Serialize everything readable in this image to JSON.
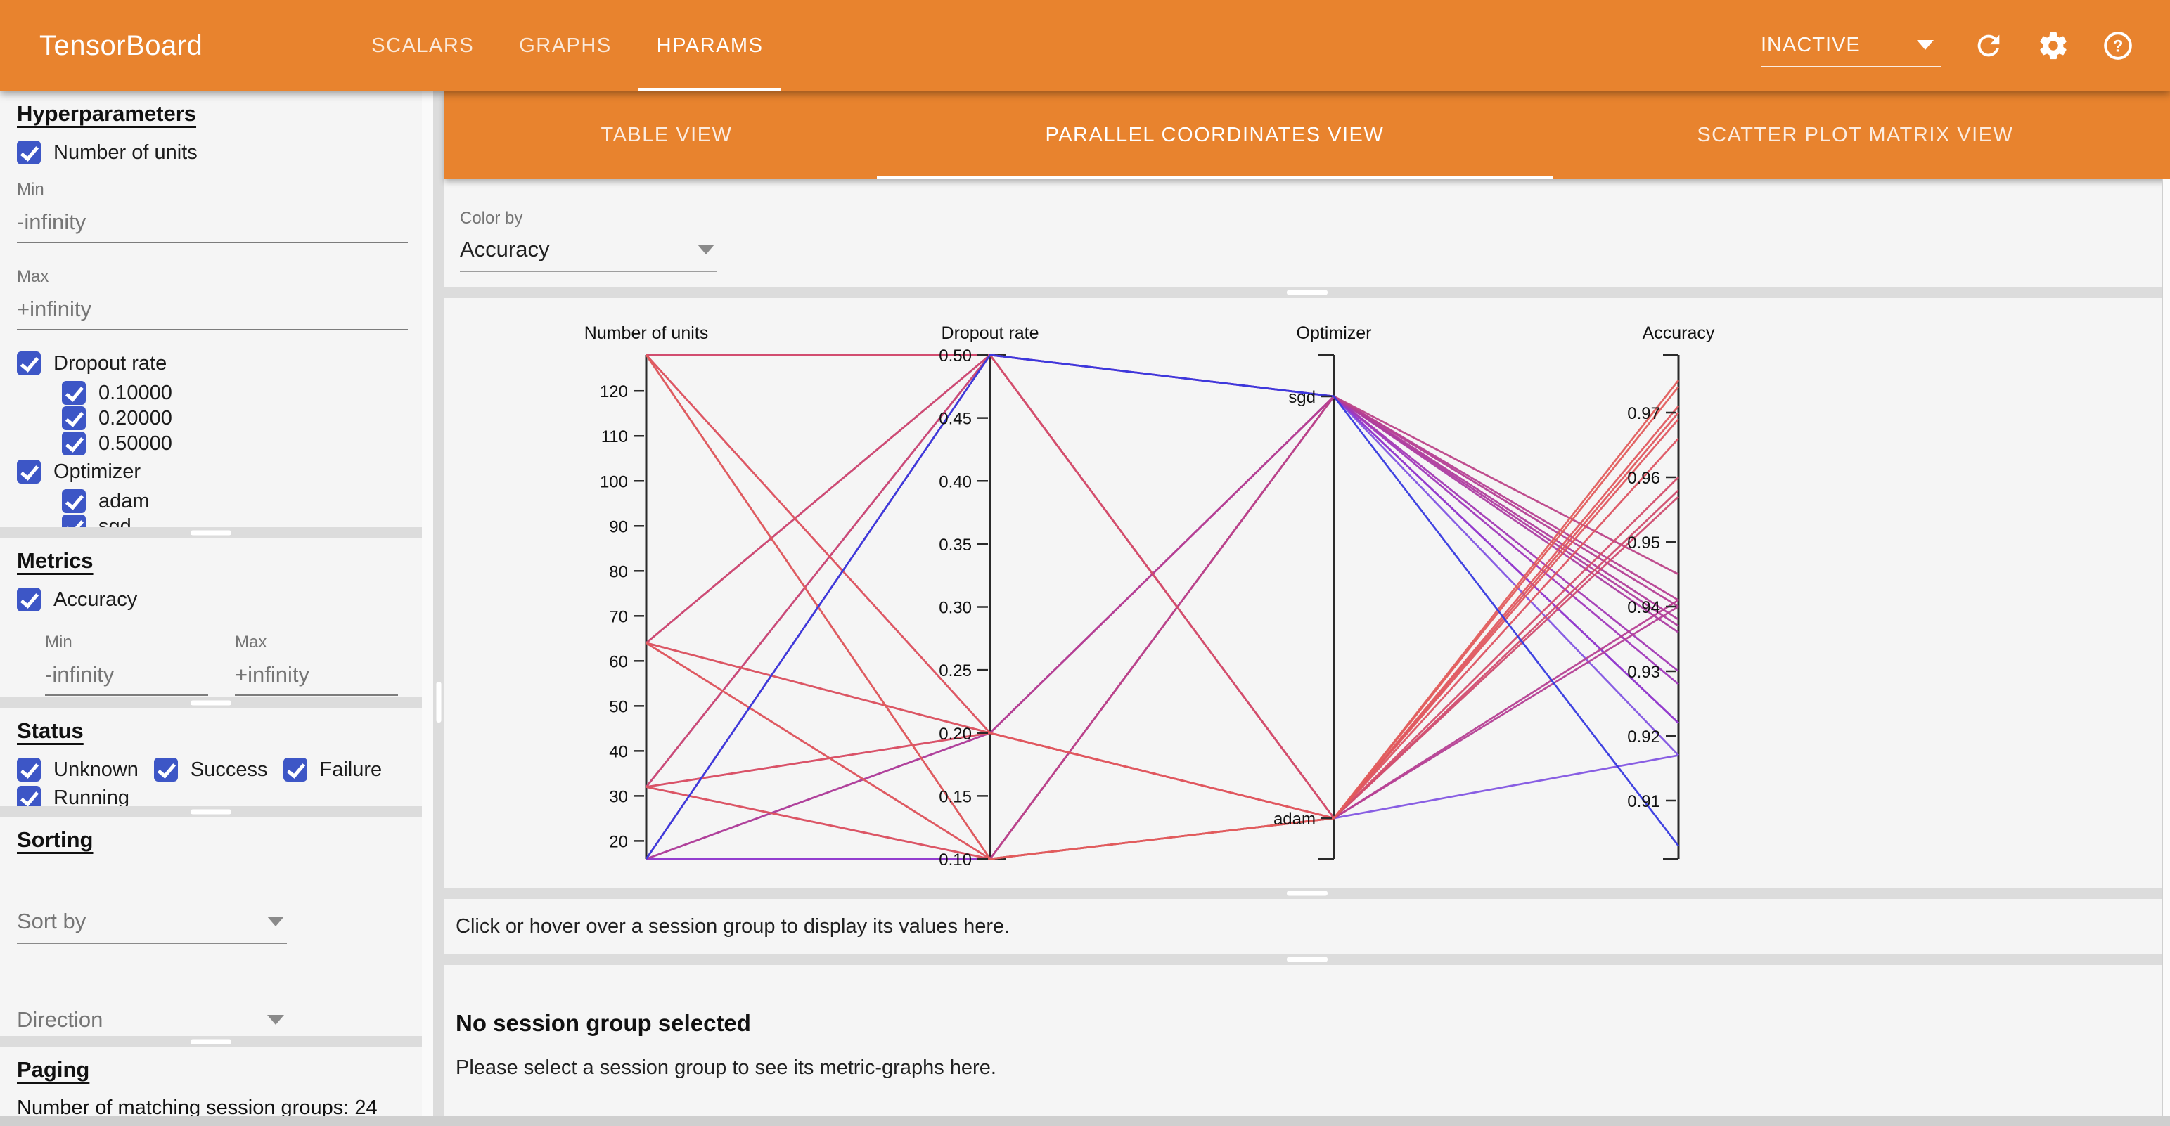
{
  "colors": {
    "header": "#e8832e",
    "checkbox": "#3d56c6",
    "divider": "#dcdcdc",
    "background": "#f5f5f5",
    "axis": "#2a2a2a",
    "scale": [
      {
        "t": 0,
        "c": "#2b35de"
      },
      {
        "t": 0.21,
        "c": "#8156e2"
      },
      {
        "t": 0.3,
        "c": "#9a35c8"
      },
      {
        "t": 0.42,
        "c": "#a53aad"
      },
      {
        "t": 0.55,
        "c": "#b8418e"
      },
      {
        "t": 0.72,
        "c": "#cc4a73"
      },
      {
        "t": 0.87,
        "c": "#dd5462"
      },
      {
        "t": 1,
        "c": "#e35e5b"
      }
    ]
  },
  "header": {
    "logo": "TensorBoard",
    "tabs": [
      "SCALARS",
      "GRAPHS",
      "HPARAMS"
    ],
    "active_tab": "HPARAMS",
    "status_select": "INACTIVE"
  },
  "sidebar": {
    "hyperparameters": {
      "title": "Hyperparameters",
      "number_of_units": "Number of units",
      "min_label": "Min",
      "min_value": "-infinity",
      "max_label": "Max",
      "max_value": "+infinity",
      "dropout": {
        "label": "Dropout rate",
        "values": [
          "0.10000",
          "0.20000",
          "0.50000"
        ]
      },
      "optimizer": {
        "label": "Optimizer",
        "values": [
          "adam",
          "sgd"
        ]
      }
    },
    "metrics": {
      "title": "Metrics",
      "accuracy_label": "Accuracy",
      "min_label": "Min",
      "min_value": "-infinity",
      "max_label": "Max",
      "max_value": "+infinity"
    },
    "status": {
      "title": "Status",
      "options": [
        "Unknown",
        "Success",
        "Failure",
        "Running"
      ]
    },
    "sorting": {
      "title": "Sorting",
      "sort_by": "Sort by",
      "direction": "Direction"
    },
    "paging": {
      "title": "Paging",
      "summary": "Number of matching session groups: 24"
    }
  },
  "main": {
    "view_tabs": [
      "TABLE VIEW",
      "PARALLEL COORDINATES VIEW",
      "SCATTER PLOT MATRIX VIEW"
    ],
    "active_view_tab": "PARALLEL COORDINATES VIEW",
    "color_by": {
      "label": "Color by",
      "value": "Accuracy"
    },
    "hover_hint": "Click or hover over a session group to display its values here.",
    "empty_state": {
      "title": "No session group selected",
      "subtitle": "Please select a session group to see its metric-graphs here."
    }
  },
  "chart_data": {
    "type": "parallel_coordinates",
    "color_by": "Accuracy",
    "axes": [
      {
        "title": "Number of units",
        "domain": [
          16,
          128
        ],
        "ticks": [
          {
            "v": 120,
            "label": "120"
          },
          {
            "v": 110,
            "label": "110"
          },
          {
            "v": 100,
            "label": "100"
          },
          {
            "v": 90,
            "label": "90"
          },
          {
            "v": 80,
            "label": "80"
          },
          {
            "v": 70,
            "label": "70"
          },
          {
            "v": 60,
            "label": "60"
          },
          {
            "v": 50,
            "label": "50"
          },
          {
            "v": 40,
            "label": "40"
          },
          {
            "v": 30,
            "label": "30"
          },
          {
            "v": 20,
            "label": "20"
          }
        ]
      },
      {
        "title": "Dropout rate",
        "domain": [
          0.1,
          0.5
        ],
        "ticks": [
          {
            "v": 0.5,
            "label": "0.50"
          },
          {
            "v": 0.45,
            "label": "0.45"
          },
          {
            "v": 0.4,
            "label": "0.40"
          },
          {
            "v": 0.35,
            "label": "0.35"
          },
          {
            "v": 0.3,
            "label": "0.30"
          },
          {
            "v": 0.25,
            "label": "0.25"
          },
          {
            "v": 0.2,
            "label": "0.20"
          },
          {
            "v": 0.15,
            "label": "0.15"
          },
          {
            "v": 0.1,
            "label": "0.10"
          }
        ]
      },
      {
        "title": "Optimizer",
        "categories": [
          "sgd",
          "adam"
        ],
        "ticks": [
          {
            "v": "sgd",
            "label": "sgd"
          },
          {
            "v": "adam",
            "label": "adam"
          }
        ]
      },
      {
        "title": "Accuracy",
        "domain": [
          0.901,
          0.979
        ],
        "ticks": [
          {
            "v": 0.97,
            "label": "0.97"
          },
          {
            "v": 0.96,
            "label": "0.96"
          },
          {
            "v": 0.95,
            "label": "0.95"
          },
          {
            "v": 0.94,
            "label": "0.94"
          },
          {
            "v": 0.93,
            "label": "0.93"
          },
          {
            "v": 0.92,
            "label": "0.92"
          },
          {
            "v": 0.91,
            "label": "0.91"
          }
        ]
      }
    ],
    "sessions": [
      {
        "units": 128,
        "dropout": 0.1,
        "optimizer": "adam",
        "accuracy": 0.975
      },
      {
        "units": 64,
        "dropout": 0.1,
        "optimizer": "adam",
        "accuracy": 0.974
      },
      {
        "units": 32,
        "dropout": 0.1,
        "optimizer": "adam",
        "accuracy": 0.969
      },
      {
        "units": 128,
        "dropout": 0.2,
        "optimizer": "adam",
        "accuracy": 0.971
      },
      {
        "units": 64,
        "dropout": 0.2,
        "optimizer": "adam",
        "accuracy": 0.97
      },
      {
        "units": 32,
        "dropout": 0.2,
        "optimizer": "adam",
        "accuracy": 0.966
      },
      {
        "units": 128,
        "dropout": 0.5,
        "optimizer": "adam",
        "accuracy": 0.96
      },
      {
        "units": 64,
        "dropout": 0.5,
        "optimizer": "adam",
        "accuracy": 0.958
      },
      {
        "units": 32,
        "dropout": 0.5,
        "optimizer": "adam",
        "accuracy": 0.957
      },
      {
        "units": 16,
        "dropout": 0.5,
        "optimizer": "adam",
        "accuracy": 0.941
      },
      {
        "units": 16,
        "dropout": 0.2,
        "optimizer": "adam",
        "accuracy": 0.94
      },
      {
        "units": 16,
        "dropout": 0.1,
        "optimizer": "adam",
        "accuracy": 0.917
      },
      {
        "units": 128,
        "dropout": 0.1,
        "optimizer": "sgd",
        "accuracy": 0.945
      },
      {
        "units": 128,
        "dropout": 0.2,
        "optimizer": "sgd",
        "accuracy": 0.941
      },
      {
        "units": 64,
        "dropout": 0.1,
        "optimizer": "sgd",
        "accuracy": 0.94
      },
      {
        "units": 64,
        "dropout": 0.2,
        "optimizer": "sgd",
        "accuracy": 0.938
      },
      {
        "units": 32,
        "dropout": 0.1,
        "optimizer": "sgd",
        "accuracy": 0.937
      },
      {
        "units": 32,
        "dropout": 0.2,
        "optimizer": "sgd",
        "accuracy": 0.936
      },
      {
        "units": 128,
        "dropout": 0.5,
        "optimizer": "sgd",
        "accuracy": 0.93
      },
      {
        "units": 64,
        "dropout": 0.5,
        "optimizer": "sgd",
        "accuracy": 0.928
      },
      {
        "units": 32,
        "dropout": 0.5,
        "optimizer": "sgd",
        "accuracy": 0.922
      },
      {
        "units": 16,
        "dropout": 0.1,
        "optimizer": "sgd",
        "accuracy": 0.922
      },
      {
        "units": 16,
        "dropout": 0.2,
        "optimizer": "sgd",
        "accuracy": 0.917
      },
      {
        "units": 16,
        "dropout": 0.5,
        "optimizer": "sgd",
        "accuracy": 0.903
      }
    ]
  }
}
